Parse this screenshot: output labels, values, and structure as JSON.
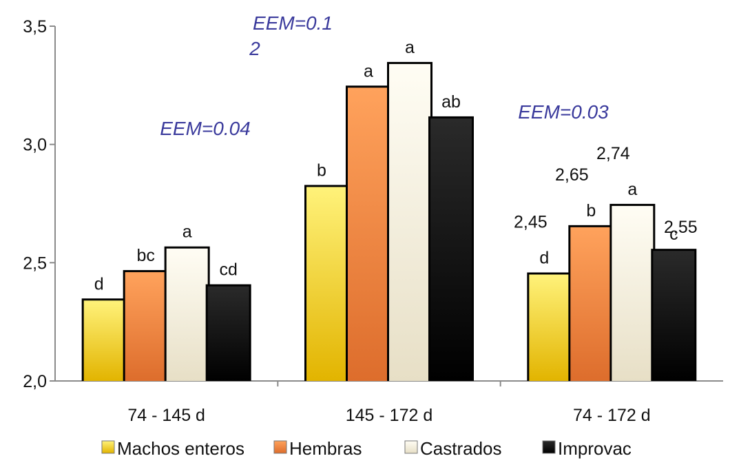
{
  "chart_data": {
    "type": "bar",
    "categories": [
      "74 - 145 d",
      "145 - 172 d",
      "74 - 172 d"
    ],
    "series": [
      {
        "name": "Machos enteros",
        "values": [
          2.34,
          2.82,
          2.45
        ],
        "color": "#f2d81e",
        "letters": [
          "d",
          "b",
          "d"
        ],
        "value_labels": [
          "",
          "",
          "2,45"
        ]
      },
      {
        "name": "Hembras",
        "values": [
          2.46,
          3.24,
          2.65
        ],
        "color": "#f08a3e",
        "letters": [
          "bc",
          "a",
          "b"
        ],
        "value_labels": [
          "",
          "",
          "2,65"
        ]
      },
      {
        "name": "Castrados",
        "values": [
          2.56,
          3.34,
          2.74
        ],
        "color": "#f3eedb",
        "letters": [
          "a",
          "a",
          "a"
        ],
        "value_labels": [
          "",
          "",
          "2,74"
        ]
      },
      {
        "name": "Improvac",
        "values": [
          2.4,
          3.11,
          2.55
        ],
        "color": "#111111",
        "letters": [
          "cd",
          "ab",
          "c"
        ],
        "value_labels": [
          "",
          "",
          "2,55"
        ]
      }
    ],
    "ylim": [
      2.0,
      3.5
    ],
    "yticks": [
      "2,0",
      "2,5",
      "3,0",
      "3,5"
    ],
    "annotations": [
      {
        "text": "EEM=0.04",
        "category": 0
      },
      {
        "text": "EEM=0.1",
        "category": 1
      },
      {
        "text": "2",
        "category": 1
      },
      {
        "text": "EEM=0.03",
        "category": 2
      }
    ],
    "legend": "bottom",
    "grid": false
  }
}
